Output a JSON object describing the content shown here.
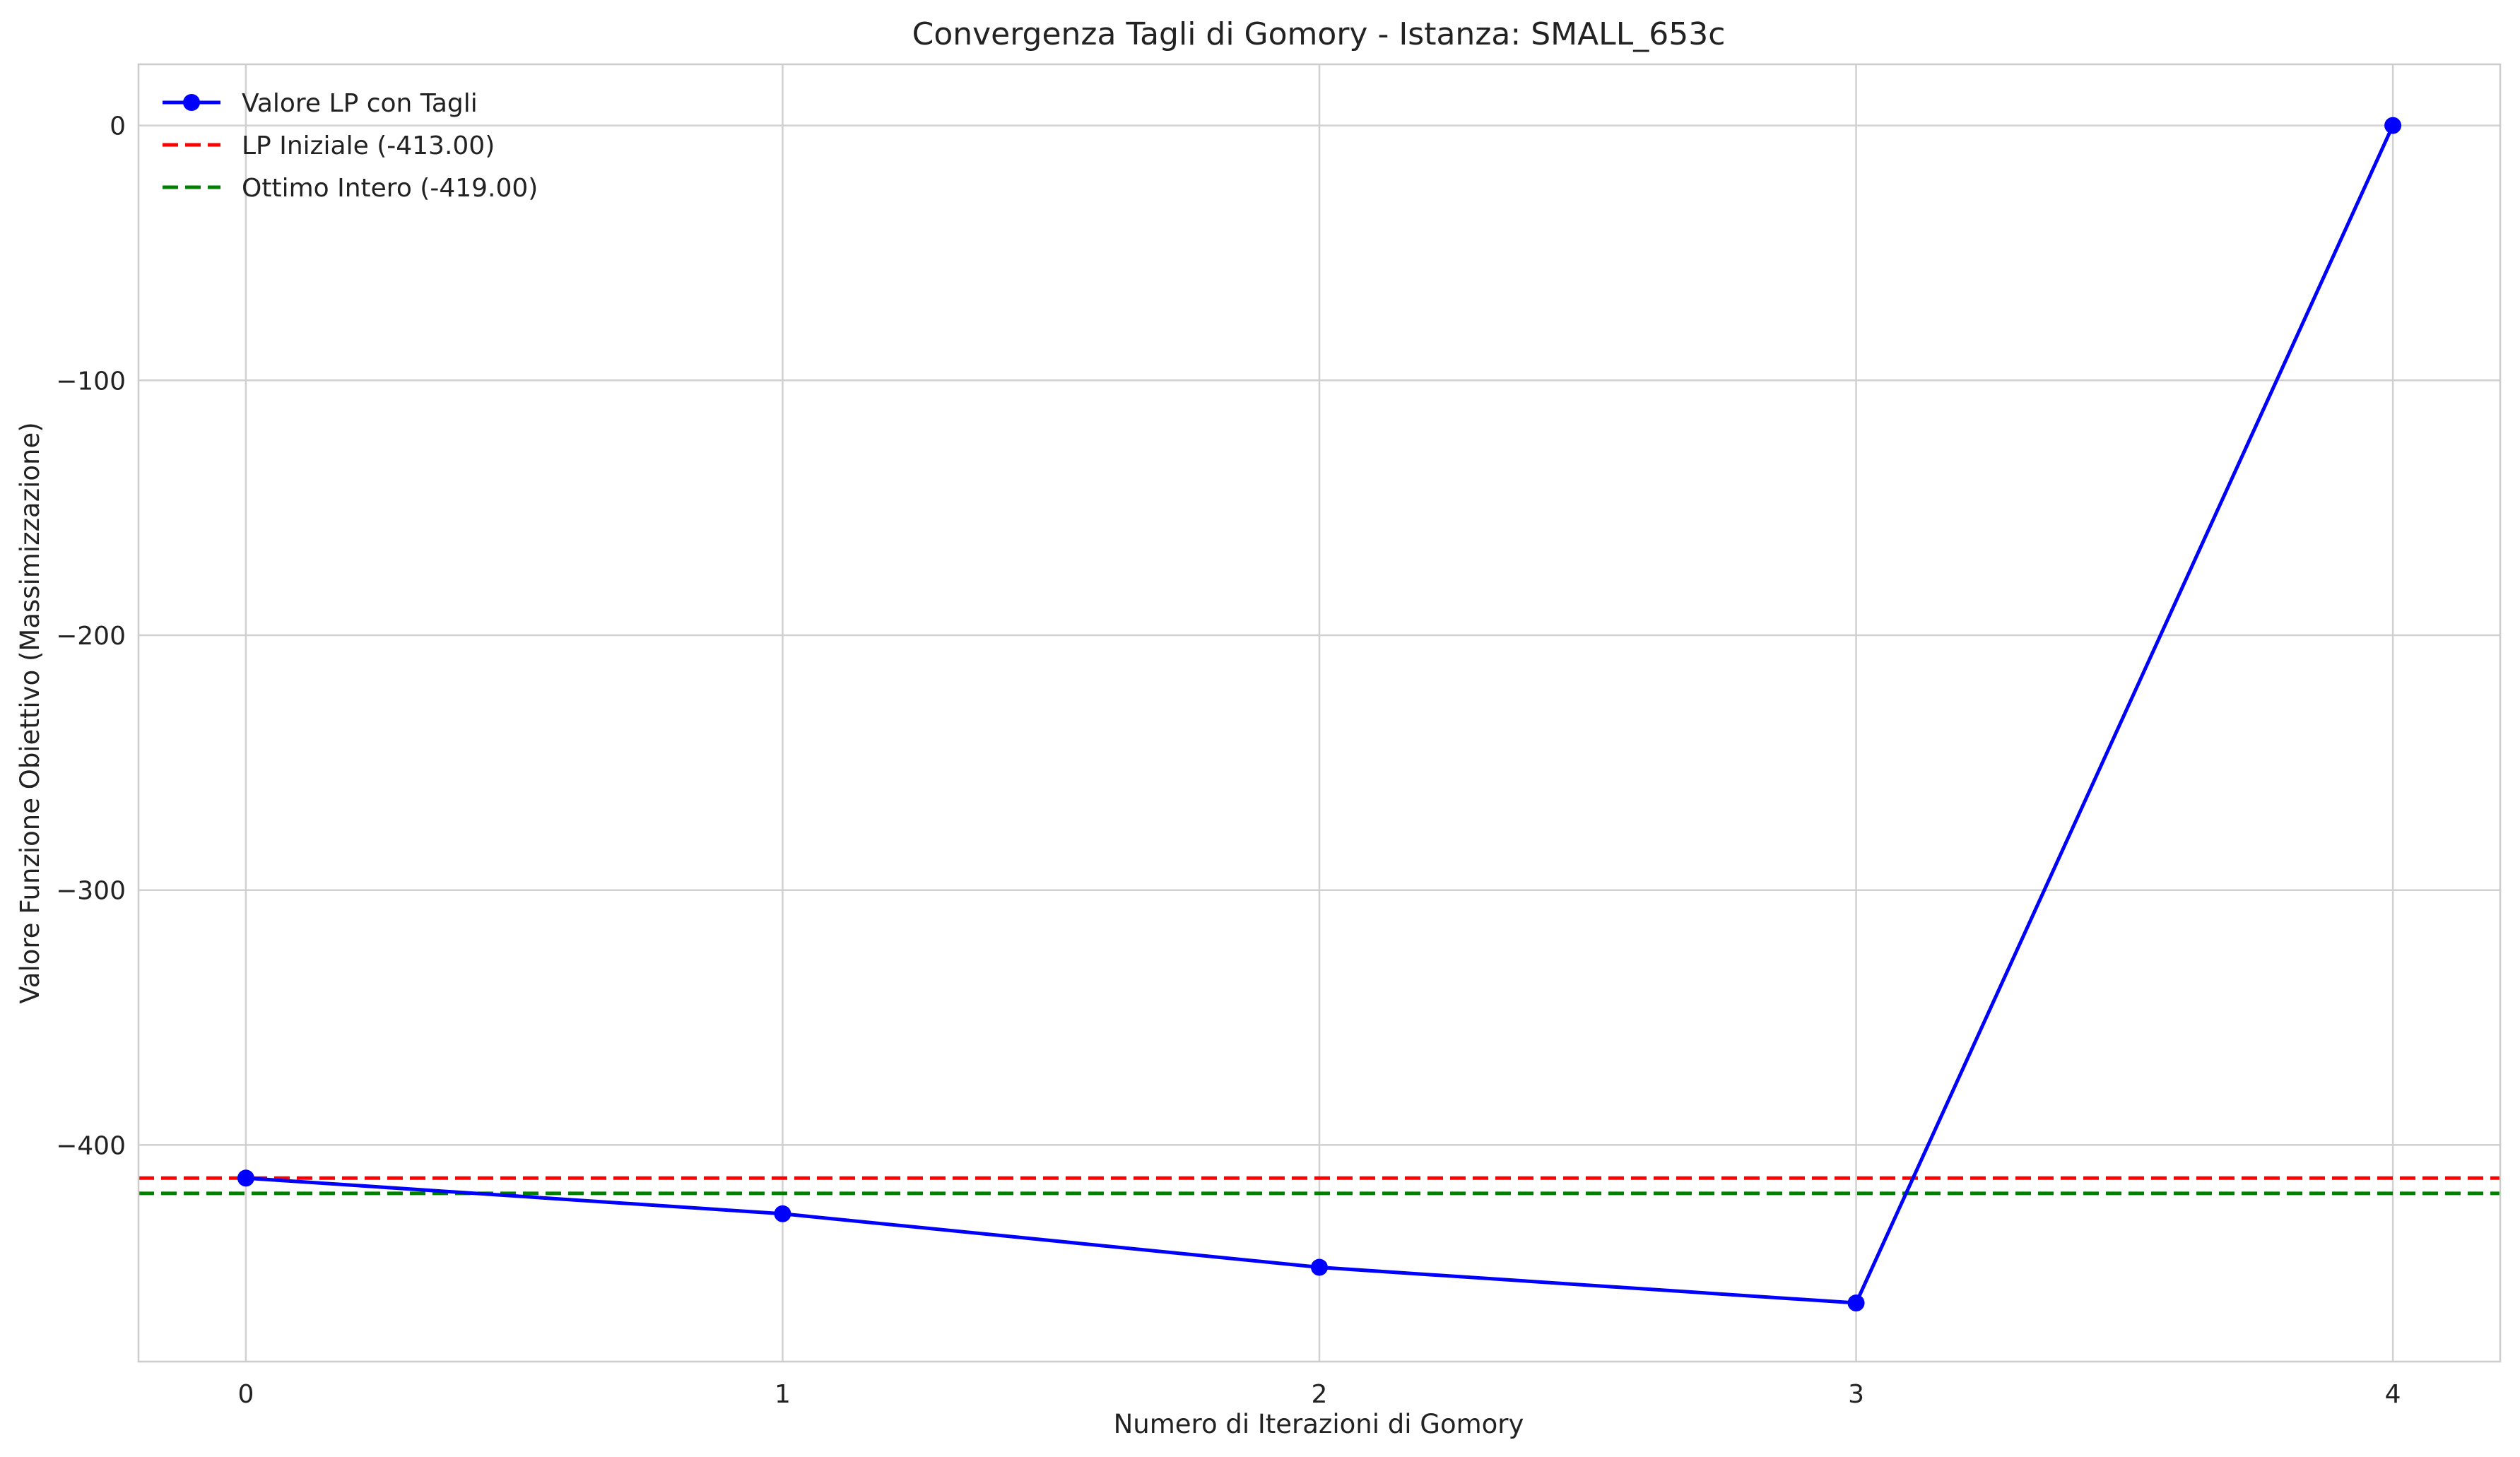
{
  "chart_data": {
    "type": "line",
    "title": "Convergenza Tagli di Gomory - Istanza: SMALL_653c",
    "xlabel": "Numero di Iterazioni di Gomory",
    "ylabel": "Valore Funzione Obiettivo (Massimizzazione)",
    "xlim": [
      -0.2,
      4.2
    ],
    "ylim": [
      -485,
      24
    ],
    "xticks": [
      0,
      1,
      2,
      3,
      4
    ],
    "xtick_labels": [
      "0",
      "1",
      "2",
      "3",
      "4"
    ],
    "yticks": [
      0,
      -100,
      -200,
      -300,
      -400
    ],
    "ytick_labels": [
      "0",
      "−100",
      "−200",
      "−300",
      "−400"
    ],
    "grid": true,
    "legend_position": "top-left",
    "series": [
      {
        "name": "Valore LP con Tagli",
        "style": "line-with-markers",
        "color": "#0000ff",
        "x": [
          0,
          1,
          2,
          3,
          4
        ],
        "y": [
          -413,
          -427,
          -448,
          -462,
          0
        ]
      }
    ],
    "reference_lines": [
      {
        "name": "LP Iniziale (-413.00)",
        "y": -413,
        "color": "#ff0000",
        "style": "dashed"
      },
      {
        "name": "Ottimo Intero (-419.00)",
        "y": -419,
        "color": "#008000",
        "style": "dashed"
      }
    ],
    "colors": {
      "grid": "#d0d0d0",
      "frame": "#cccccc",
      "text": "#222222"
    }
  }
}
